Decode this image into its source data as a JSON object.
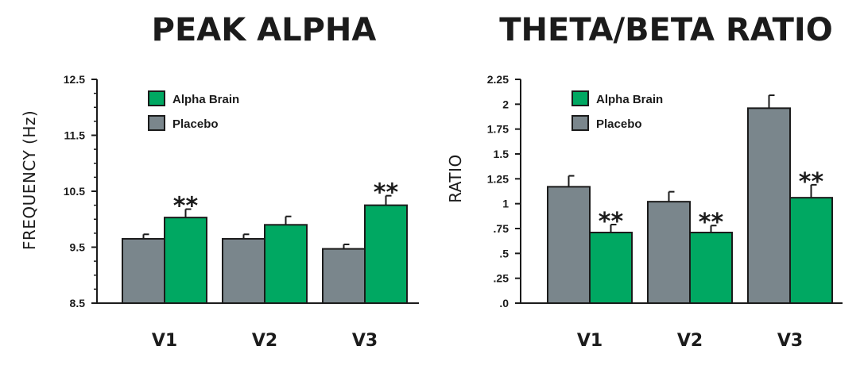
{
  "colors": {
    "alpha_brain": "#00a862",
    "placebo": "#7a868c",
    "stroke": "#1b1b1b"
  },
  "chart_data": [
    {
      "type": "bar",
      "title": "PEAK ALPHA",
      "xlabel": "",
      "ylabel": "FREQUENCY (Hz)",
      "ylim": [
        8.5,
        12.5
      ],
      "yticks": [
        8.5,
        9.5,
        10.5,
        11.5,
        12.5
      ],
      "ytick_labels": [
        "8.5",
        "9.5",
        "10.5",
        "11.5",
        "12.5"
      ],
      "categories": [
        "V1",
        "V2",
        "V3"
      ],
      "series": [
        {
          "name": "Placebo",
          "values": [
            9.65,
            9.65,
            9.47
          ],
          "errors": [
            0.08,
            0.08,
            0.08
          ]
        },
        {
          "name": "Alpha Brain",
          "values": [
            10.03,
            9.9,
            10.25
          ],
          "errors": [
            0.15,
            0.15,
            0.17
          ]
        }
      ],
      "annotations": [
        {
          "category": "V1",
          "series": "Alpha Brain",
          "text": "**"
        },
        {
          "category": "V3",
          "series": "Alpha Brain",
          "text": "**"
        }
      ],
      "legend": [
        "Alpha Brain",
        "Placebo"
      ],
      "legend_position": "top-left"
    },
    {
      "type": "bar",
      "title": "THETA/BETA RATIO",
      "xlabel": "",
      "ylabel": "RATIO",
      "ylim": [
        0,
        2.25
      ],
      "yticks": [
        0,
        0.25,
        0.5,
        0.75,
        1,
        1.25,
        1.5,
        1.75,
        2,
        2.25
      ],
      "ytick_labels": [
        ".0",
        ".25",
        ".5",
        ".75",
        "1",
        "1.25",
        "1.5",
        "1.75",
        "2",
        "2.25"
      ],
      "categories": [
        "V1",
        "V2",
        "V3"
      ],
      "series": [
        {
          "name": "Placebo",
          "values": [
            1.17,
            1.02,
            1.96
          ],
          "errors": [
            0.11,
            0.1,
            0.13
          ]
        },
        {
          "name": "Alpha Brain",
          "values": [
            0.71,
            0.71,
            1.06
          ],
          "errors": [
            0.08,
            0.07,
            0.13
          ]
        }
      ],
      "annotations": [
        {
          "category": "V1",
          "series": "Alpha Brain",
          "text": "**"
        },
        {
          "category": "V2",
          "series": "Alpha Brain",
          "text": "**"
        },
        {
          "category": "V3",
          "series": "Alpha Brain",
          "text": "**"
        }
      ],
      "legend": [
        "Alpha Brain",
        "Placebo"
      ],
      "legend_position": "top-left"
    }
  ]
}
